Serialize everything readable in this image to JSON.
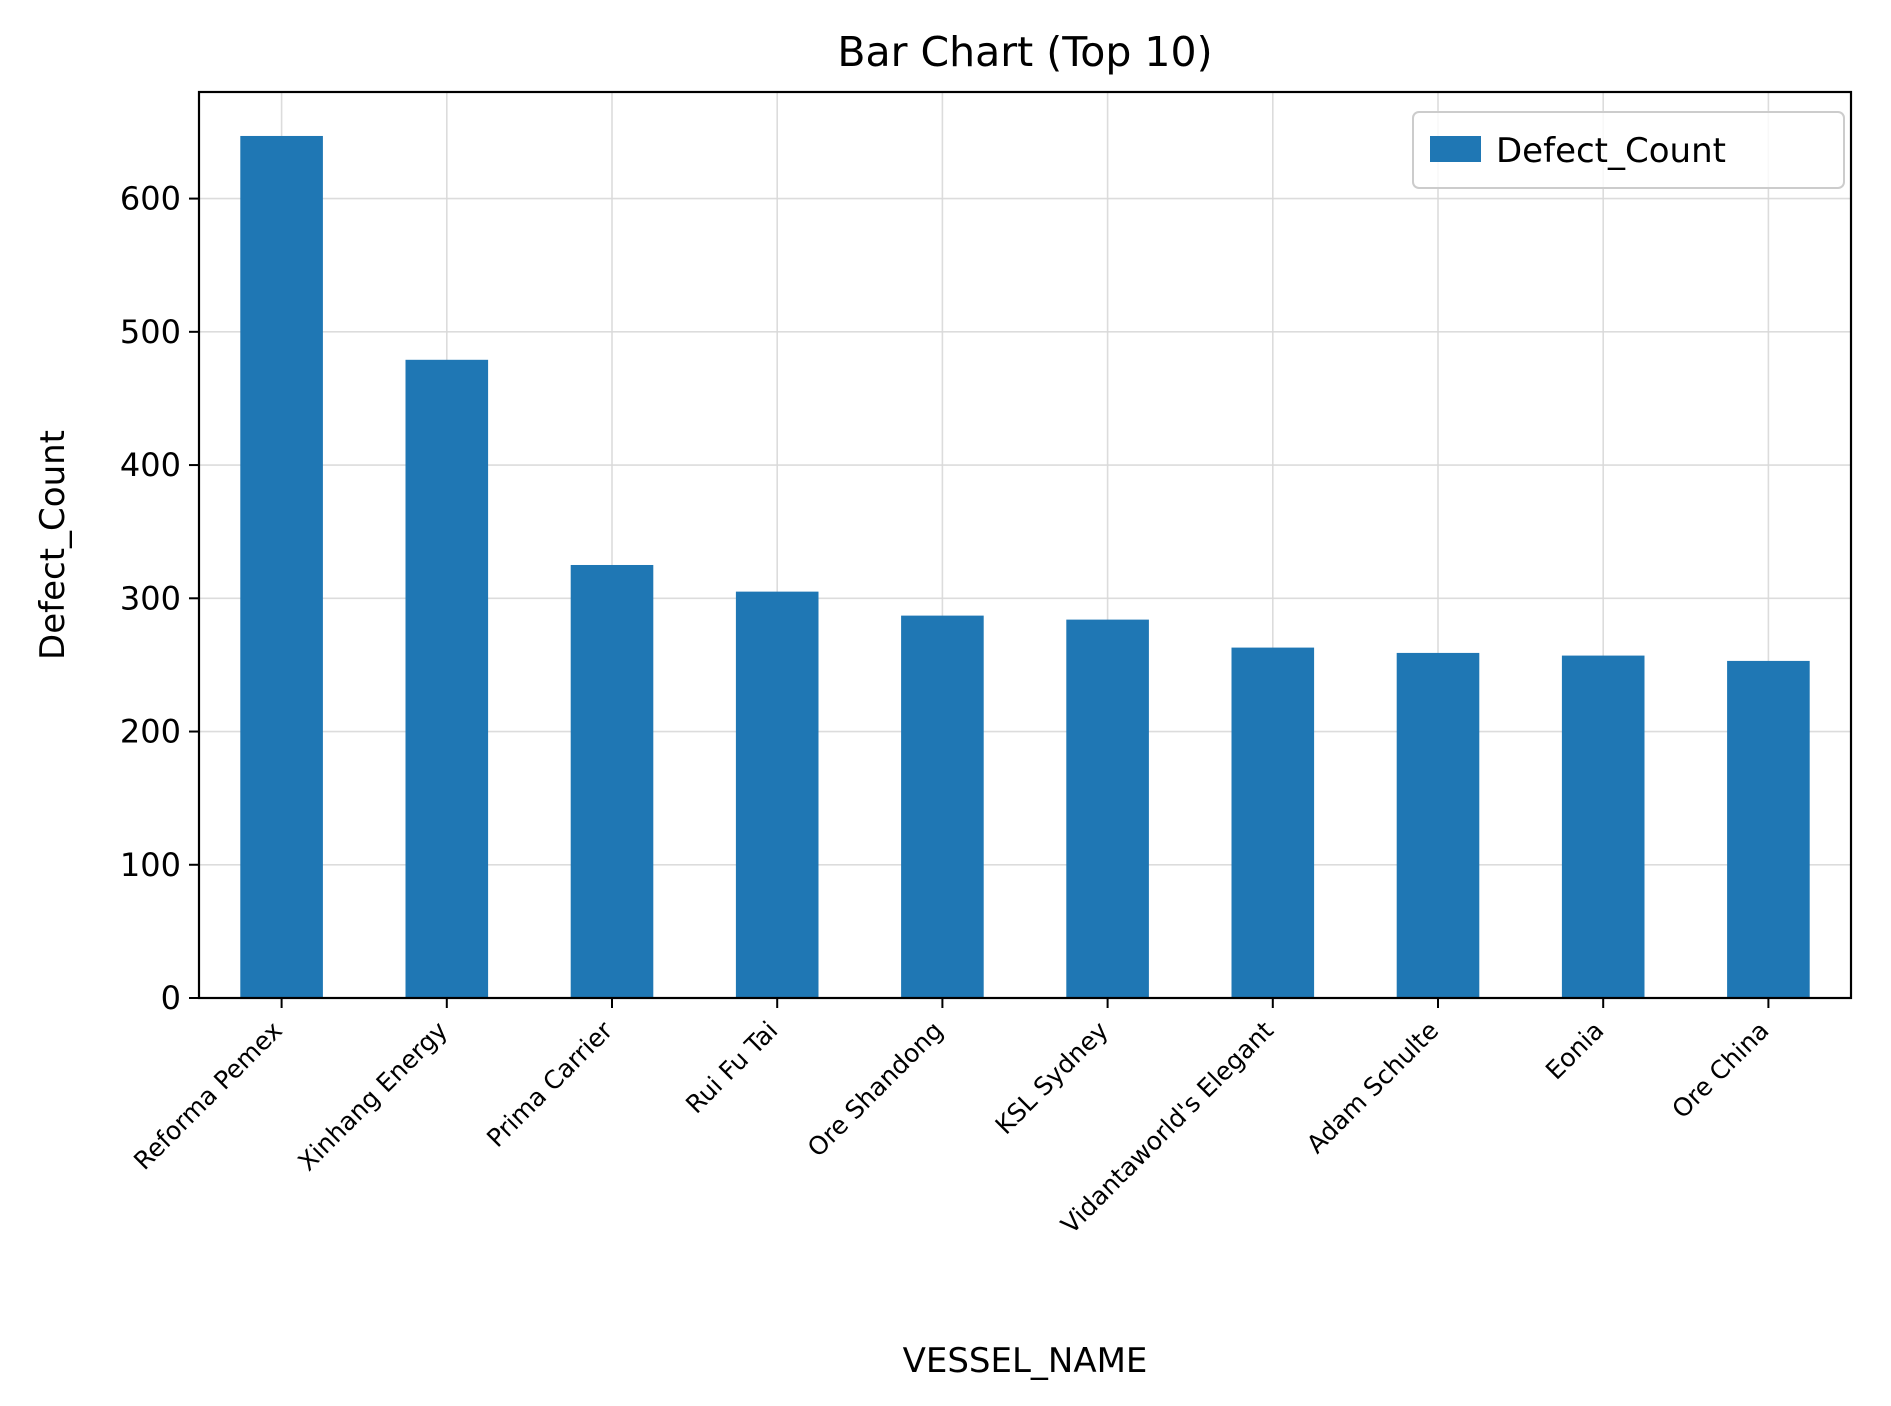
{
  "chart_data": {
    "type": "bar",
    "title": "Bar Chart (Top 10)",
    "xlabel": "VESSEL_NAME",
    "ylabel": "Defect_Count",
    "categories": [
      "Reforma Pemex",
      "Xinhang Energy",
      "Prima Carrier",
      "Rui Fu Tai",
      "Ore Shandong",
      "KSL Sydney",
      "Vidantaworld's Elegant",
      "Adam Schulte",
      "Eonia",
      "Ore China"
    ],
    "series": [
      {
        "name": "Defect_Count",
        "color": "#1f77b4",
        "values": [
          647,
          479,
          325,
          305,
          287,
          284,
          263,
          259,
          257,
          253
        ]
      }
    ],
    "ylim": [
      0,
      680
    ],
    "yticks": [
      "0",
      "100",
      "200",
      "300",
      "400",
      "500",
      "600"
    ],
    "grid": true,
    "legend": "top-right"
  }
}
